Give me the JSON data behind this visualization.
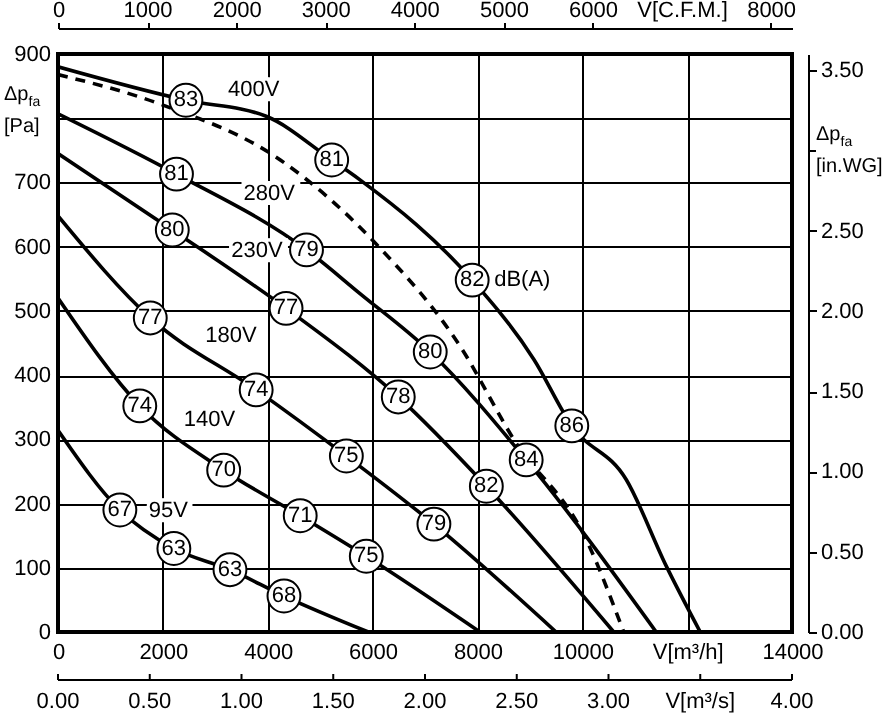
{
  "chart_data": [
    {
      "type": "line",
      "xlabel": "V[m³/h]",
      "ylabel": "Δp$_{fa}$ [Pa]",
      "x2label": "V[C.F.M.]",
      "y2label": "Δp$_{fa}$ [in.WG]",
      "xlim": [
        0,
        14000
      ],
      "xticks": [
        0,
        2000,
        4000,
        6000,
        8000,
        10000,
        {
          "value": 12000,
          "label": null
        },
        14000
      ],
      "ylim": [
        0,
        900
      ],
      "yticks": [
        0,
        100,
        200,
        300,
        400,
        500,
        600,
        700,
        {
          "value": 800,
          "label": null
        },
        900
      ],
      "x2lim": [
        0,
        8240
      ],
      "x2ticks": [
        0,
        1000,
        2000,
        3000,
        4000,
        5000,
        6000,
        8000
      ],
      "y2lim": [
        0,
        3.6
      ],
      "y2ticks": [
        {
          "value": 0,
          "label": "0.00"
        },
        {
          "value": 0.5,
          "label": "0.50"
        },
        {
          "value": 1,
          "label": "1.00"
        },
        {
          "value": 1.5,
          "label": "1.50"
        },
        {
          "value": 2,
          "label": "2.00"
        },
        {
          "value": 2.5,
          "label": "2.50"
        },
        {
          "value": 3,
          "label": null
        },
        {
          "value": 3.5,
          "label": "3.50"
        }
      ],
      "grid": true,
      "series": [
        {
          "name": "400V",
          "color": "#000000",
          "x": [
            0,
            2440,
            3970,
            5220,
            5760,
            7900,
            9080,
            9800,
            10840,
            11600,
            12250
          ],
          "values": [
            880,
            828,
            803,
            735,
            704,
            548,
            424,
            321,
            237,
            103,
            0
          ]
        },
        {
          "color": "#000000",
          "line_style": "dashed",
          "x": [
            0,
            1950,
            4240,
            6140,
            7670,
            8700,
            10080,
            10790
          ],
          "values": [
            868,
            822,
            735,
            598,
            445,
            299,
            143,
            0
          ]
        },
        {
          "name": "280V",
          "color": "#000000",
          "x": [
            0,
            2260,
            4740,
            5760,
            7100,
            8930,
            11410
          ],
          "values": [
            807,
            713,
            595,
            527,
            436,
            268,
            0
          ]
        },
        {
          "name": "230V",
          "color": "#000000",
          "x": [
            0,
            2180,
            4350,
            6490,
            8170,
            10600
          ],
          "values": [
            745,
            626,
            504,
            366,
            227,
            0
          ]
        },
        {
          "name": "180V",
          "color": "#000000",
          "x": [
            0,
            1760,
            3780,
            5500,
            7170,
            9500
          ],
          "values": [
            648,
            489,
            377,
            274,
            168,
            0
          ]
        },
        {
          "name": "140V",
          "color": "#000000",
          "x": [
            0,
            1560,
            3160,
            4620,
            5880,
            8050
          ],
          "values": [
            520,
            352,
            252,
            181,
            118,
            0
          ]
        },
        {
          "name": "95V",
          "color": "#000000",
          "x": [
            0,
            1180,
            2210,
            3280,
            4310,
            5920
          ],
          "values": [
            314,
            190,
            130,
            97,
            56,
            0
          ]
        }
      ],
      "annotations": [
        {
          "text": "dB(A)",
          "x": 7900,
          "y": 548
        },
        {
          "text": "83",
          "x": 2440,
          "y": 828
        },
        {
          "text": "81",
          "x": 5220,
          "y": 735
        },
        {
          "text": "82",
          "x": 7900,
          "y": 548
        },
        {
          "text": "86",
          "x": 9800,
          "y": 321
        },
        {
          "text": "81",
          "x": 2260,
          "y": 713
        },
        {
          "text": "79",
          "x": 4740,
          "y": 595
        },
        {
          "text": "80",
          "x": 7100,
          "y": 436
        },
        {
          "text": "84",
          "x": 8930,
          "y": 268
        },
        {
          "text": "80",
          "x": 2180,
          "y": 626
        },
        {
          "text": "77",
          "x": 4350,
          "y": 504
        },
        {
          "text": "78",
          "x": 6490,
          "y": 366
        },
        {
          "text": "82",
          "x": 8170,
          "y": 227
        },
        {
          "text": "77",
          "x": 1760,
          "y": 489
        },
        {
          "text": "74",
          "x": 3780,
          "y": 377
        },
        {
          "text": "75",
          "x": 5500,
          "y": 274
        },
        {
          "text": "79",
          "x": 7170,
          "y": 168
        },
        {
          "text": "74",
          "x": 1560,
          "y": 352
        },
        {
          "text": "70",
          "x": 3160,
          "y": 252
        },
        {
          "text": "71",
          "x": 4620,
          "y": 181
        },
        {
          "text": "75",
          "x": 5880,
          "y": 118
        },
        {
          "text": "67",
          "x": 1180,
          "y": 190
        },
        {
          "text": "63",
          "x": 2210,
          "y": 130
        },
        {
          "text": "63",
          "x": 3280,
          "y": 97
        },
        {
          "text": "68",
          "x": 4310,
          "y": 56
        }
      ]
    },
    {
      "type": "other",
      "annotations": [
        "0.00",
        "0.50",
        "1.00",
        "1.50",
        "2.00",
        "2.50",
        "3.00",
        "V[m³/s]",
        "4.00"
      ]
    }
  ]
}
